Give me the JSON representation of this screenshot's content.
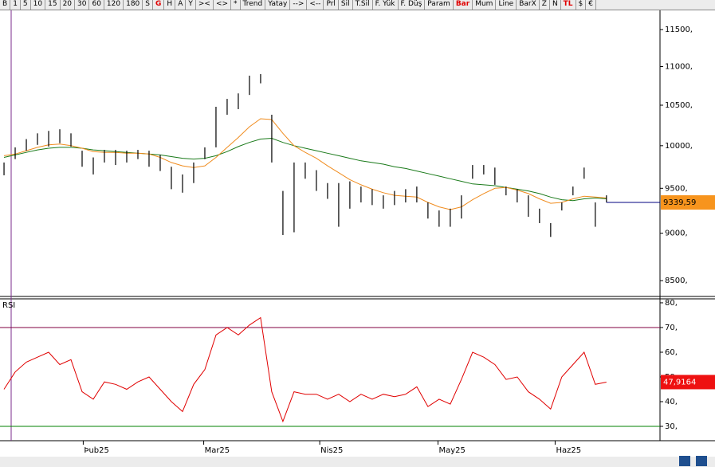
{
  "toolbar": {
    "buttons": [
      {
        "label": "B"
      },
      {
        "label": "1"
      },
      {
        "label": "5"
      },
      {
        "label": "10"
      },
      {
        "label": "15"
      },
      {
        "label": "20"
      },
      {
        "label": "30"
      },
      {
        "label": "60"
      },
      {
        "label": "120"
      },
      {
        "label": "180"
      },
      {
        "label": "S"
      },
      {
        "label": "G",
        "active": true
      },
      {
        "label": "H"
      },
      {
        "label": "A"
      },
      {
        "label": "Y"
      },
      {
        "label": "><"
      },
      {
        "label": "<>"
      },
      {
        "label": "*"
      },
      {
        "label": "Trend"
      },
      {
        "label": "Yatay"
      },
      {
        "label": "-->"
      },
      {
        "label": "<--"
      },
      {
        "label": "Prl"
      },
      {
        "label": "Sil"
      },
      {
        "label": "T.Sil"
      },
      {
        "label": "F. Yük"
      },
      {
        "label": "F. Düş"
      },
      {
        "label": "Param"
      },
      {
        "label": "Bar",
        "active": true
      },
      {
        "label": "Mum"
      },
      {
        "label": "Line"
      },
      {
        "label": "BarX"
      },
      {
        "label": "Z"
      },
      {
        "label": "N"
      },
      {
        "label": "TL",
        "active": true
      },
      {
        "label": "$"
      },
      {
        "label": "€"
      }
    ]
  },
  "chart_data": [
    {
      "type": "bar",
      "log": true,
      "ylim": [
        8340,
        11770
      ],
      "xlim": [
        -0.36,
        58.8
      ],
      "bar_color": "#000000",
      "yticks": [
        {
          "value": 11500,
          "label": "11500,"
        },
        {
          "value": 11000,
          "label": "11000,"
        },
        {
          "value": 10500,
          "label": "10500,"
        },
        {
          "value": 10000,
          "label": "10000,"
        },
        {
          "value": 9500,
          "label": "9500,"
        },
        {
          "value": 9000,
          "label": "9000,"
        },
        {
          "value": 8500,
          "label": "8500,"
        }
      ],
      "high": [
        9800,
        9980,
        10080,
        10150,
        10180,
        10200,
        10150,
        9940,
        9860,
        9950,
        9950,
        9940,
        9950,
        9940,
        9890,
        9750,
        9660,
        9800,
        9980,
        10480,
        10580,
        10650,
        10880,
        10900,
        10380,
        9470,
        9800,
        9800,
        9710,
        9560,
        9560,
        9580,
        9520,
        9490,
        9420,
        9470,
        9490,
        9520,
        9340,
        9250,
        9270,
        9420,
        9770,
        9770,
        9740,
        9520,
        9490,
        9420,
        9270,
        9110,
        9340,
        9520,
        9740,
        9340,
        9420
      ],
      "low": [
        9650,
        9840,
        9940,
        10010,
        9990,
        10030,
        9990,
        9750,
        9660,
        9800,
        9770,
        9800,
        9840,
        9750,
        9700,
        9490,
        9450,
        9560,
        9840,
        9980,
        10380,
        10450,
        10630,
        10780,
        9800,
        8980,
        9010,
        9610,
        9470,
        9380,
        9070,
        9270,
        9340,
        9310,
        9270,
        9310,
        9340,
        9340,
        9160,
        9070,
        9070,
        9160,
        9610,
        9660,
        9540,
        9420,
        9340,
        9180,
        9110,
        8960,
        9250,
        9420,
        9610,
        9070,
        9340
      ],
      "series": [
        {
          "color": "#1a7a1a",
          "values": [
            9860,
            9890,
            9920,
            9950,
            9970,
            9980,
            9980,
            9970,
            9950,
            9940,
            9930,
            9920,
            9910,
            9900,
            9890,
            9870,
            9850,
            9840,
            9850,
            9880,
            9930,
            9990,
            10040,
            10080,
            10090,
            10040,
            10000,
            9970,
            9940,
            9910,
            9880,
            9850,
            9820,
            9800,
            9780,
            9750,
            9730,
            9700,
            9670,
            9640,
            9610,
            9580,
            9550,
            9540,
            9530,
            9510,
            9490,
            9470,
            9440,
            9400,
            9370,
            9360,
            9380,
            9390,
            9380
          ]
        },
        {
          "color": "#f08c1e",
          "values": [
            9880,
            9900,
            9940,
            9980,
            10010,
            10020,
            10000,
            9970,
            9930,
            9920,
            9920,
            9910,
            9910,
            9900,
            9860,
            9800,
            9760,
            9740,
            9760,
            9860,
            9980,
            10100,
            10230,
            10330,
            10320,
            10150,
            10000,
            9920,
            9850,
            9760,
            9680,
            9600,
            9540,
            9490,
            9450,
            9420,
            9410,
            9400,
            9340,
            9290,
            9260,
            9290,
            9370,
            9440,
            9500,
            9510,
            9480,
            9440,
            9380,
            9330,
            9340,
            9380,
            9410,
            9400,
            9390
          ]
        }
      ],
      "last_value": 9339.59,
      "last_label": "9339,59",
      "last_color": "#f7941d",
      "last_line_color": "#000080"
    },
    {
      "type": "line",
      "title": "RSI",
      "ylim": [
        24.2,
        81.6
      ],
      "xlim": [
        -0.36,
        58.8
      ],
      "yticks": [
        {
          "value": 80,
          "label": "80,"
        },
        {
          "value": 70,
          "label": "70,"
        },
        {
          "value": 60,
          "label": "60,"
        },
        {
          "value": 50,
          "label": "50,"
        },
        {
          "value": 40,
          "label": "40,"
        },
        {
          "value": 30,
          "label": "30,"
        }
      ],
      "xticks": [
        {
          "value": 7.1,
          "label": "Þub25"
        },
        {
          "value": 17.9,
          "label": "Mar25"
        },
        {
          "value": 28.3,
          "label": "Nis25"
        },
        {
          "value": 38.9,
          "label": "May25"
        },
        {
          "value": 49.4,
          "label": "Haz25"
        }
      ],
      "bands": [
        {
          "value": 70,
          "color": "#800040"
        },
        {
          "value": 30,
          "color": "#008000"
        }
      ],
      "series": [
        {
          "color": "#e00000",
          "values": [
            45,
            52,
            56,
            58,
            60,
            55,
            57,
            44,
            41,
            48,
            47,
            45,
            48,
            50,
            45,
            40,
            36,
            47,
            53,
            67,
            70,
            67,
            71,
            74,
            44,
            32,
            44,
            43,
            43,
            41,
            43,
            40,
            43,
            41,
            43,
            42,
            43,
            46,
            38,
            41,
            39,
            49,
            60,
            58,
            55,
            49,
            50,
            44,
            41,
            37,
            50,
            55,
            60,
            47,
            47.9164
          ]
        }
      ],
      "last_label": "47,9164",
      "last_color": "#ee1111"
    }
  ]
}
